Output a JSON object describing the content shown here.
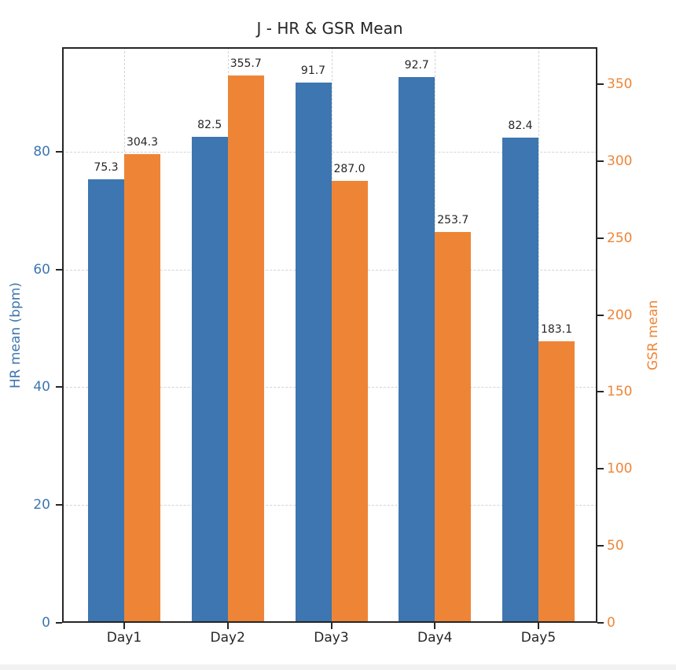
{
  "title": "J - HR & GSR Mean",
  "axes": {
    "left": {
      "label": "HR mean (bpm)",
      "color": "#3d76b0",
      "ticks": [
        0,
        20,
        40,
        60,
        80
      ]
    },
    "right": {
      "label": "GSR mean",
      "color": "#ee8536",
      "ticks": [
        0,
        50,
        100,
        150,
        200,
        250,
        300,
        350
      ]
    },
    "bottom": {
      "categories": [
        "Day1",
        "Day2",
        "Day3",
        "Day4",
        "Day5"
      ]
    }
  },
  "chart_data": {
    "type": "bar",
    "title": "J - HR & GSR Mean",
    "categories": [
      "Day1",
      "Day2",
      "Day3",
      "Day4",
      "Day5"
    ],
    "series": [
      {
        "name": "HR mean (bpm)",
        "yaxis": "left",
        "color": "#3d76b0",
        "values": [
          75.3,
          82.5,
          91.7,
          92.7,
          82.4
        ]
      },
      {
        "name": "GSR mean",
        "yaxis": "right",
        "color": "#ee8536",
        "values": [
          304.3,
          355.7,
          287.0,
          253.7,
          183.1
        ]
      }
    ],
    "ylabel_left": "HR mean (bpm)",
    "ylabel_right": "GSR mean",
    "ylim_left": [
      0,
      97.76
    ],
    "ylim_right": [
      0,
      374.0
    ],
    "grid": true,
    "grid_style": "dashed",
    "legend": "none",
    "value_labels": true,
    "value_label_format": "0.1f"
  },
  "colors": {
    "hr_bar": "#3d76b0",
    "gsr_bar": "#ee8536",
    "grid": "#d4d4d4",
    "spine": "#262626",
    "text": "#262626",
    "bottom_strip": "#f2f2f3"
  }
}
